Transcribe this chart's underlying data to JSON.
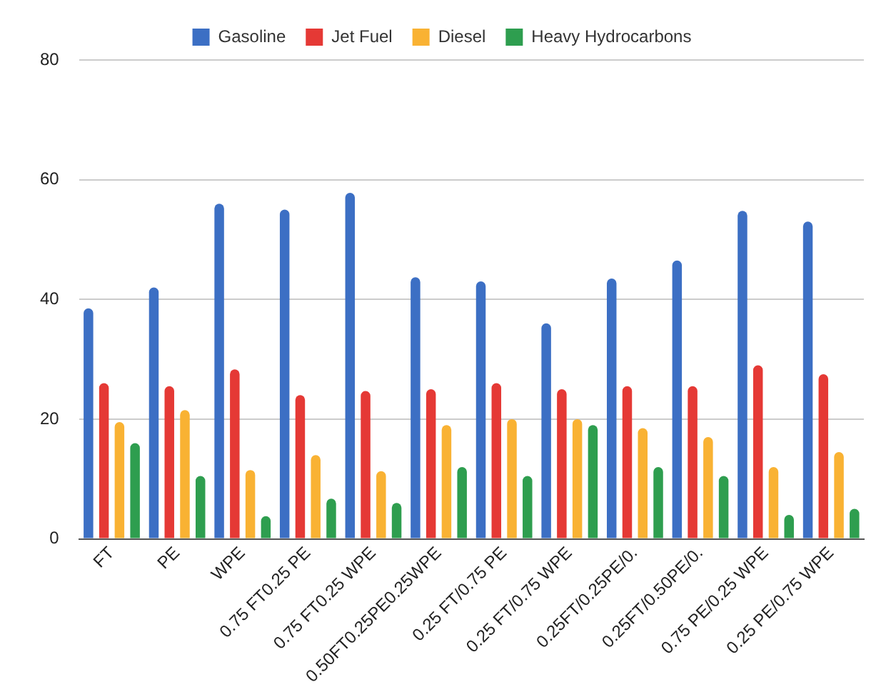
{
  "chart_data": {
    "type": "bar",
    "categories": [
      "FT",
      "PE",
      "WPE",
      "0.75 FT0.25 PE",
      "0.75 FT0.25 WPE",
      "0.50FT0.25PE0.25WPE",
      "0.25 FT/0.75 PE",
      "0.25 FT/0.75 WPE",
      "0.25FT/0.25PE/0.",
      "0.25FT/0.50PE/0.",
      "0.75 PE/0.25 WPE",
      "0.25 PE/0.75 WPE"
    ],
    "series": [
      {
        "name": "Gasoline",
        "color": "#3c6fc4",
        "values": [
          38.5,
          42,
          56,
          55,
          57.8,
          43.7,
          43,
          36,
          43.5,
          46.5,
          54.8,
          53
        ]
      },
      {
        "name": "Jet Fuel",
        "color": "#e53935",
        "values": [
          26,
          25.5,
          28.3,
          24,
          24.7,
          25,
          26,
          25,
          25.5,
          25.5,
          29,
          27.5
        ]
      },
      {
        "name": "Diesel",
        "color": "#f9b233",
        "values": [
          19.5,
          21.5,
          11.5,
          14,
          11.3,
          19,
          20,
          20,
          18.5,
          17,
          12,
          14.5
        ]
      },
      {
        "name": "Heavy Hydrocarbons",
        "color": "#2e9e4f",
        "values": [
          16,
          10.5,
          3.8,
          6.7,
          6,
          12,
          10.5,
          19,
          12,
          10.5,
          4,
          5
        ]
      }
    ],
    "ylim": [
      0,
      80
    ],
    "yticks": [
      0,
      20,
      40,
      60,
      80
    ],
    "grid": "y",
    "legend": "top"
  }
}
